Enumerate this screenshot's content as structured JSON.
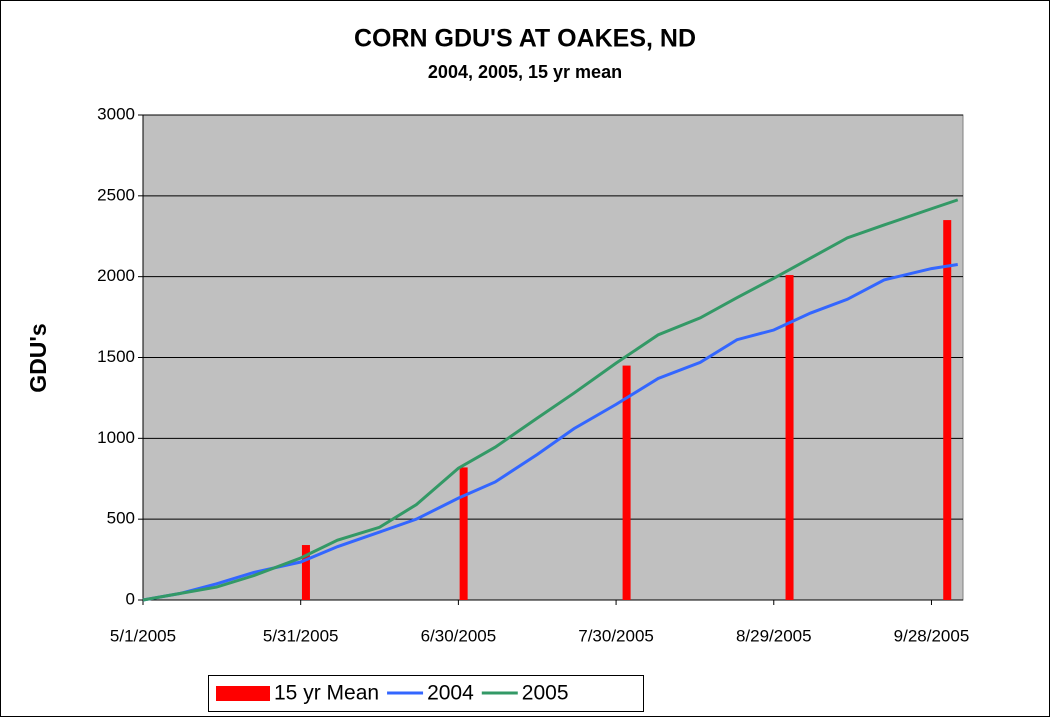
{
  "chart_data": {
    "type": "line",
    "title": "CORN GDU'S AT OAKES, ND",
    "subtitle": "2004, 2005, 15 yr mean",
    "ylabel": "GDU's",
    "xlim": [
      "5/1/2005",
      "10/4/2005"
    ],
    "xticks": [
      "5/1/2005",
      "5/31/2005",
      "6/30/2005",
      "7/30/2005",
      "8/29/2005",
      "9/28/2005"
    ],
    "ylim": [
      0,
      3000
    ],
    "yticks": [
      0,
      500,
      1000,
      1500,
      2000,
      2500,
      3000
    ],
    "grid": true,
    "legend": "bottom",
    "series": [
      {
        "name": "15 yr Mean",
        "type": "bar",
        "color": "#ff0000",
        "x": [
          "6/1/2005",
          "7/1/2005",
          "8/1/2005",
          "9/1/2005",
          "10/1/2005"
        ],
        "values": [
          340,
          820,
          1450,
          2010,
          2350
        ]
      },
      {
        "name": "2004",
        "type": "line",
        "color": "#3366ff",
        "x": [
          "5/1/2005",
          "5/8/2005",
          "5/15/2005",
          "5/22/2005",
          "5/31/2005",
          "6/7/2005",
          "6/15/2005",
          "6/22/2005",
          "6/30/2005",
          "7/7/2005",
          "7/15/2005",
          "7/22/2005",
          "7/30/2005",
          "8/7/2005",
          "8/15/2005",
          "8/22/2005",
          "8/29/2005",
          "9/5/2005",
          "9/12/2005",
          "9/19/2005",
          "9/28/2005",
          "10/3/2005"
        ],
        "values": [
          0,
          40,
          100,
          170,
          235,
          330,
          420,
          500,
          630,
          730,
          900,
          1060,
          1210,
          1370,
          1470,
          1610,
          1670,
          1775,
          1860,
          1980,
          2050,
          2075
        ]
      },
      {
        "name": "2005",
        "type": "line",
        "color": "#339966",
        "x": [
          "5/1/2005",
          "5/8/2005",
          "5/15/2005",
          "5/22/2005",
          "5/31/2005",
          "6/7/2005",
          "6/15/2005",
          "6/22/2005",
          "6/30/2005",
          "7/7/2005",
          "7/15/2005",
          "7/22/2005",
          "7/30/2005",
          "8/7/2005",
          "8/15/2005",
          "8/22/2005",
          "8/29/2005",
          "9/5/2005",
          "9/12/2005",
          "9/19/2005",
          "9/28/2005",
          "10/3/2005"
        ],
        "values": [
          0,
          40,
          80,
          150,
          260,
          370,
          450,
          590,
          815,
          945,
          1125,
          1280,
          1465,
          1640,
          1745,
          1870,
          1990,
          2115,
          2240,
          2320,
          2420,
          2475
        ]
      }
    ]
  }
}
